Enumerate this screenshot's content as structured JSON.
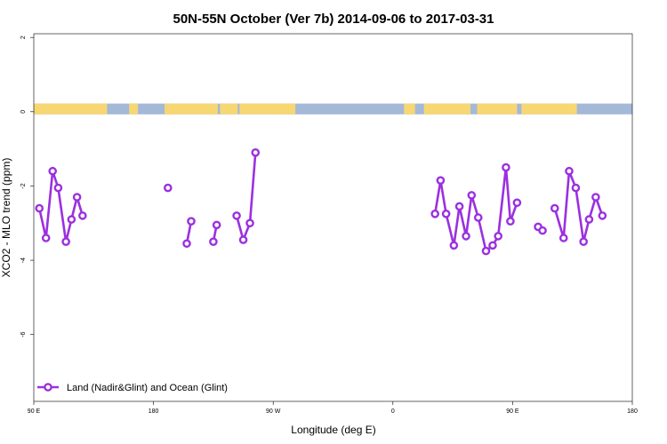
{
  "chart_data": {
    "type": "line",
    "title": "50N-55N October (Ver 7b)   2014-09-06 to 2017-03-31",
    "xlabel": "Longitude (deg E)",
    "ylabel": "XCO2 - MLO trend (ppm)",
    "xlim": [
      -90,
      180
    ],
    "ylim": [
      -7.8,
      2.1
    ],
    "x_tick_labels": [
      {
        "value": -90,
        "label": "90 E"
      },
      {
        "value": -36,
        "label": "180"
      },
      {
        "value": 18,
        "label": "90 W"
      },
      {
        "value": 72,
        "label": "0"
      },
      {
        "value": 126,
        "label": "90 E"
      },
      {
        "value": 180,
        "label": "180"
      }
    ],
    "y_ticks": [
      2,
      0,
      -2,
      -4,
      -6
    ],
    "y_tick_labels": [
      "2",
      "0",
      "-2",
      "-4",
      "-6"
    ],
    "land_ocean_band": {
      "y_range": [
        -0.07,
        0.22
      ],
      "ocean_color": "#a4b8d8",
      "land_color": "#f7d774",
      "land_segments": [
        [
          -90,
          -57
        ],
        [
          -59,
          -57
        ],
        [
          -47,
          -43
        ],
        [
          -31,
          -7
        ],
        [
          -6,
          2
        ],
        [
          2.8,
          22
        ],
        [
          21,
          28
        ],
        [
          77,
          82
        ],
        [
          86,
          107
        ],
        [
          110,
          128
        ],
        [
          130,
          155
        ],
        [
          185.5,
          180
        ]
      ]
    },
    "series": [
      {
        "name": "Land (Nadir&Glint) and Ocean (Glint)",
        "color": "#9b30e0",
        "segments": [
          [
            [
              -87.5,
              -2.6
            ],
            [
              -84.5,
              -3.4
            ],
            [
              -81.5,
              -1.6
            ],
            [
              -79,
              -2.05
            ],
            [
              -75.5,
              -3.5
            ],
            [
              -73,
              -2.9
            ],
            [
              -70.5,
              -2.3
            ],
            [
              -68,
              -2.8
            ]
          ],
          [
            [
              -29.5,
              -2.05
            ]
          ],
          [
            [
              -21,
              -3.55
            ],
            [
              -19,
              -2.95
            ]
          ],
          [
            [
              -9,
              -3.5
            ],
            [
              -7.5,
              -3.05
            ]
          ],
          [
            [
              1.5,
              -2.8
            ],
            [
              4.5,
              -3.45
            ],
            [
              7.5,
              -3.0
            ],
            [
              10,
              -1.1
            ]
          ],
          [
            [
              91,
              -2.75
            ],
            [
              93.5,
              -1.85
            ],
            [
              96,
              -2.75
            ],
            [
              99.5,
              -3.6
            ],
            [
              102,
              -2.55
            ],
            [
              105,
              -3.35
            ],
            [
              107.5,
              -2.25
            ],
            [
              110.5,
              -2.85
            ],
            [
              114,
              -3.75
            ],
            [
              117,
              -3.6
            ],
            [
              119.5,
              -3.35
            ],
            [
              123,
              -1.5
            ],
            [
              125,
              -2.95
            ],
            [
              128,
              -2.45
            ]
          ],
          [
            [
              137.5,
              -3.1
            ],
            [
              139.5,
              -3.2
            ]
          ],
          [
            [
              145,
              -2.6
            ],
            [
              149,
              -3.4
            ],
            [
              151.5,
              -1.6
            ],
            [
              154.5,
              -2.05
            ],
            [
              158,
              -3.5
            ],
            [
              160.5,
              -2.9
            ],
            [
              163.5,
              -2.3
            ],
            [
              166.5,
              -2.8
            ]
          ]
        ]
      }
    ],
    "legend": {
      "position": "bottom-left",
      "border": false
    },
    "grid": false
  }
}
